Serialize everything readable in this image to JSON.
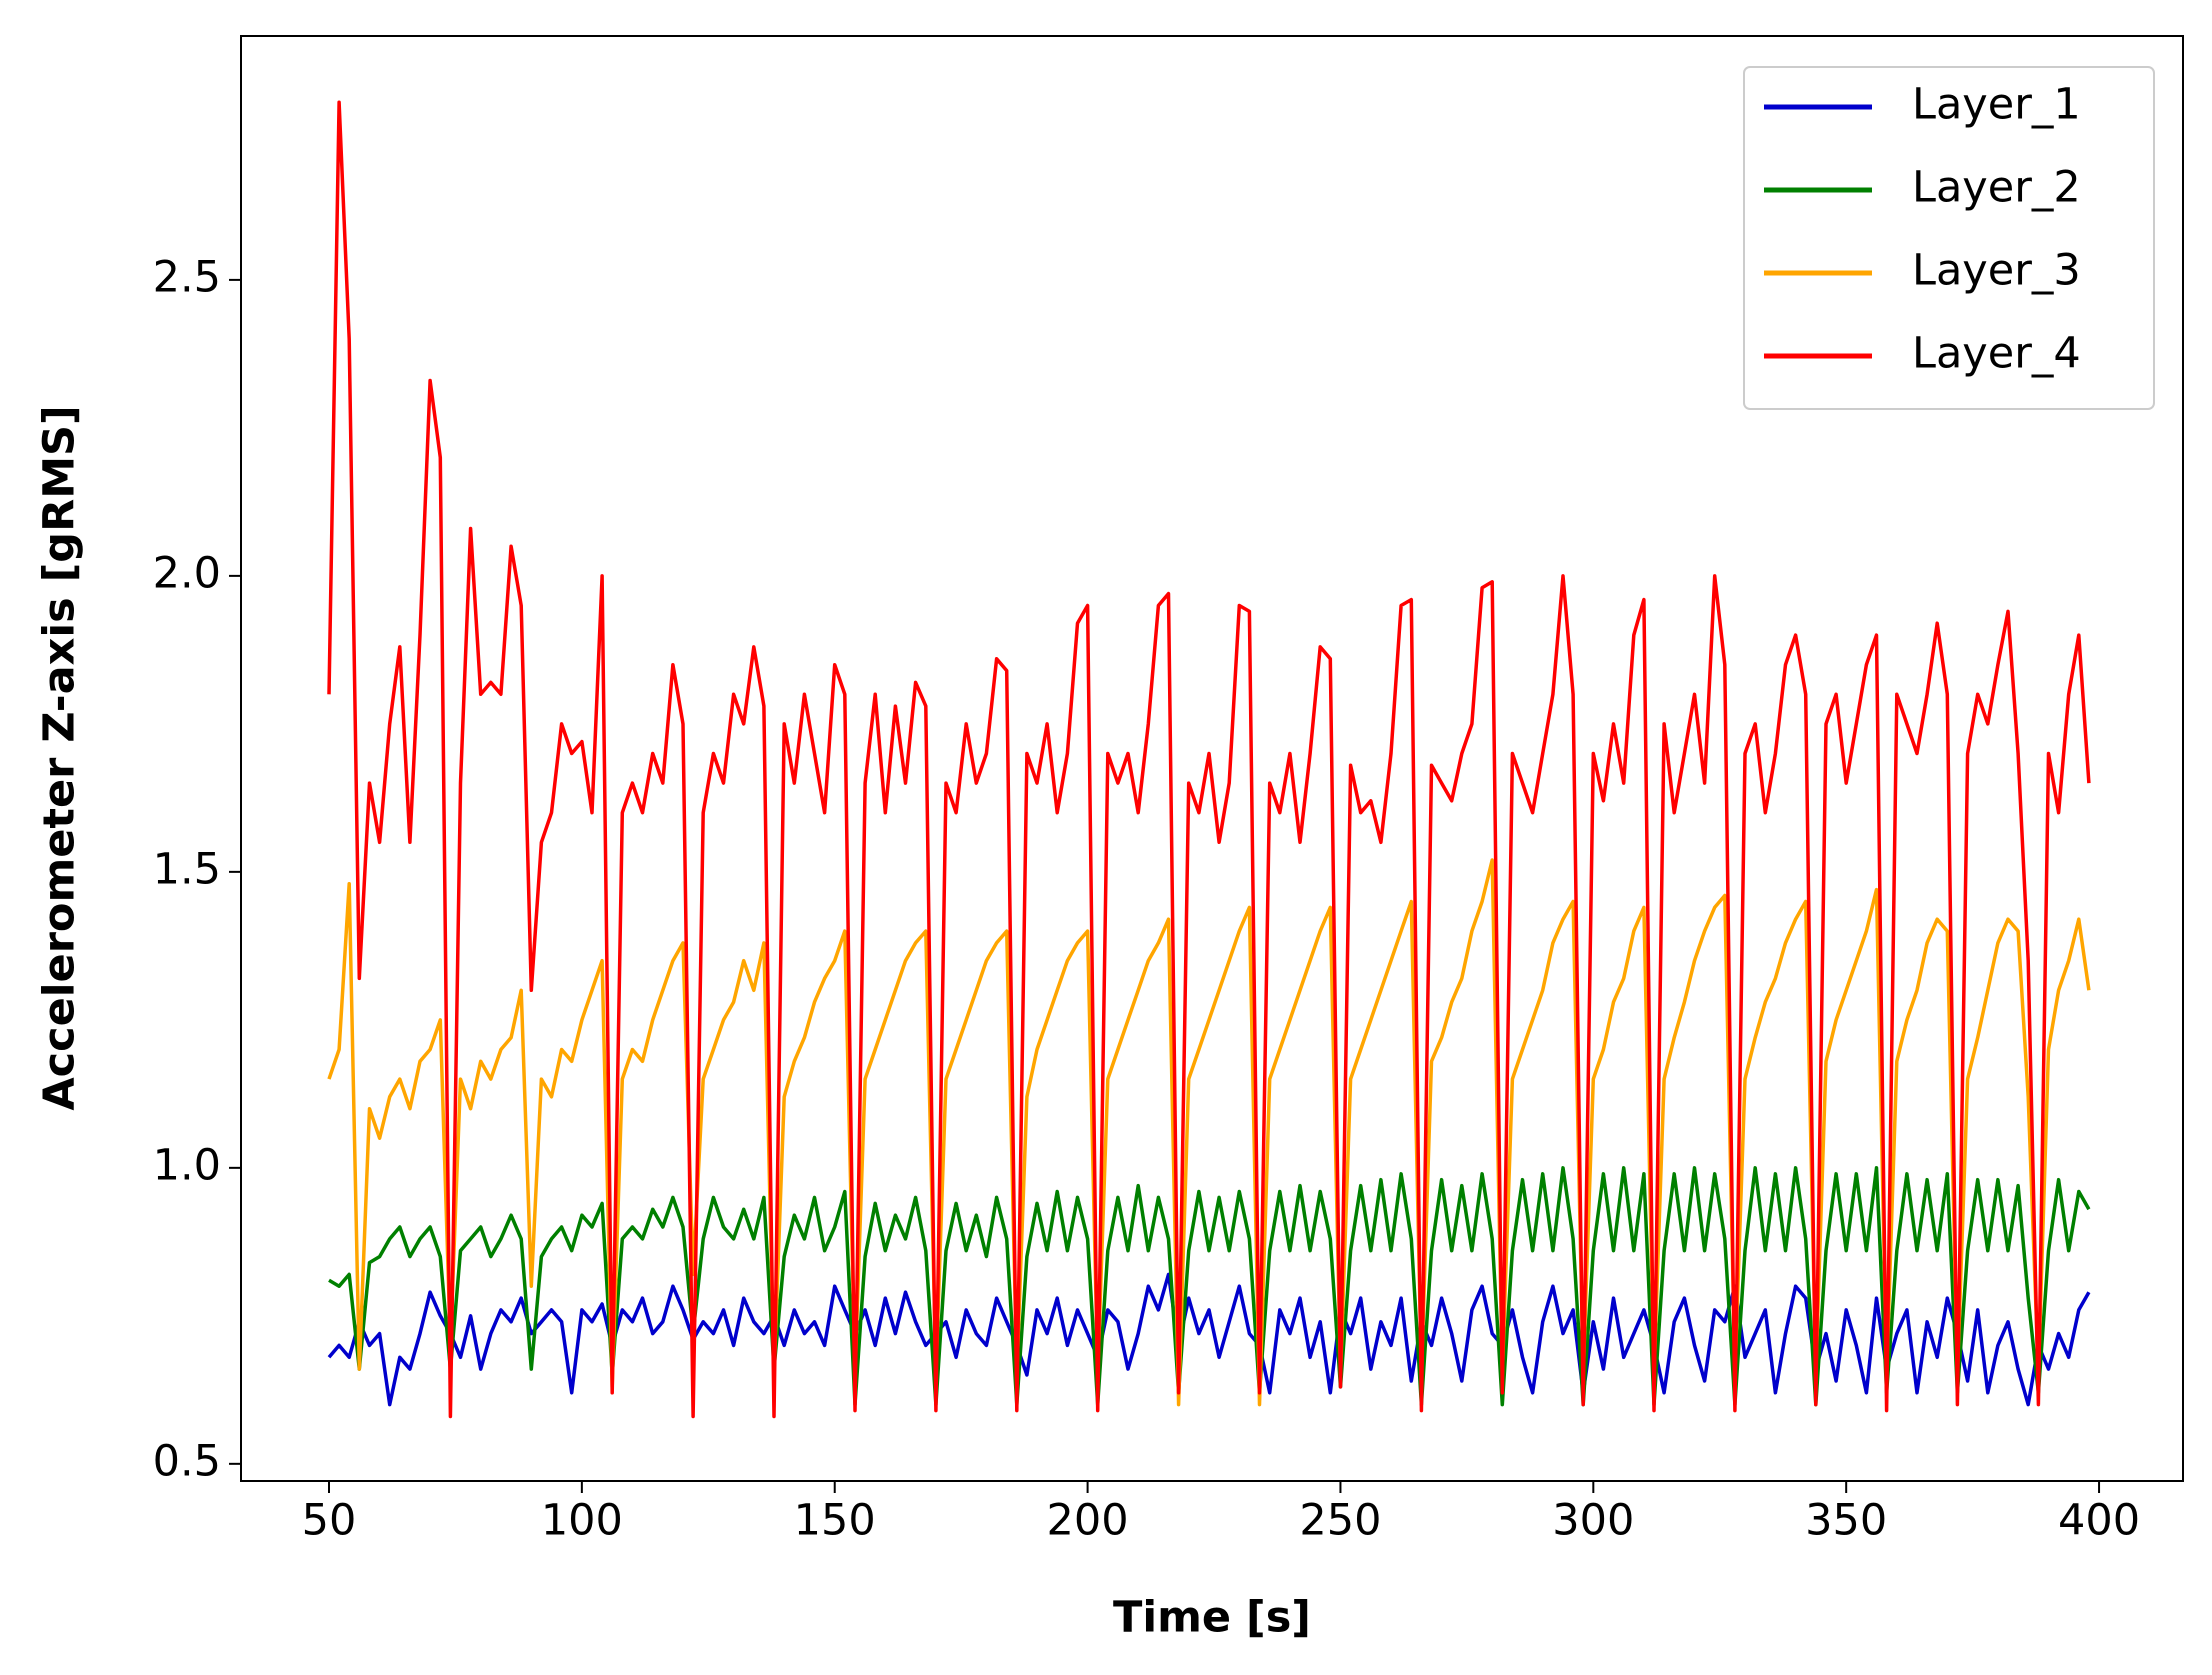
{
  "chart_data": {
    "type": "line",
    "xlabel": "Time [s]",
    "ylabel": "Accelerometer Z-axis [gRMS]",
    "xlim": [
      32.6,
      416.6
    ],
    "ylim": [
      0.471,
      2.912
    ],
    "xticks": [
      50,
      100,
      150,
      200,
      250,
      300,
      350,
      400
    ],
    "yticks": [
      0.5,
      {
        "value": 1,
        "label": "1.0"
      },
      1.5,
      {
        "value": 2,
        "label": "2.0"
      },
      2.5
    ],
    "legend": "upper right",
    "grid": false,
    "x": [
      50,
      52,
      54,
      56,
      58,
      60,
      62,
      64,
      66,
      68,
      70,
      72,
      74,
      76,
      78,
      80,
      82,
      84,
      86,
      88,
      90,
      92,
      94,
      96,
      98,
      100,
      102,
      104,
      106,
      108,
      110,
      112,
      114,
      116,
      118,
      120,
      122,
      124,
      126,
      128,
      130,
      132,
      134,
      136,
      138,
      140,
      142,
      144,
      146,
      148,
      150,
      152,
      154,
      156,
      158,
      160,
      162,
      164,
      166,
      168,
      170,
      172,
      174,
      176,
      178,
      180,
      182,
      184,
      186,
      188,
      190,
      192,
      194,
      196,
      198,
      200,
      202,
      204,
      206,
      208,
      210,
      212,
      214,
      216,
      218,
      220,
      222,
      224,
      226,
      228,
      230,
      232,
      234,
      236,
      238,
      240,
      242,
      244,
      246,
      248,
      250,
      252,
      254,
      256,
      258,
      260,
      262,
      264,
      266,
      268,
      270,
      272,
      274,
      276,
      278,
      280,
      282,
      284,
      286,
      288,
      290,
      292,
      294,
      296,
      298,
      300,
      302,
      304,
      306,
      308,
      310,
      312,
      314,
      316,
      318,
      320,
      322,
      324,
      326,
      328,
      330,
      332,
      334,
      336,
      338,
      340,
      342,
      344,
      346,
      348,
      350,
      352,
      354,
      356,
      358,
      360,
      362,
      364,
      366,
      368,
      370,
      372,
      374,
      376,
      378,
      380,
      382,
      384,
      386,
      388,
      390,
      392,
      394,
      396,
      398
    ],
    "series": [
      {
        "name": "Layer_1",
        "color": "#0000cc",
        "values": [
          0.68,
          0.7,
          0.68,
          0.74,
          0.7,
          0.72,
          0.6,
          0.68,
          0.66,
          0.72,
          0.79,
          0.75,
          0.72,
          0.68,
          0.75,
          0.66,
          0.72,
          0.76,
          0.74,
          0.78,
          0.72,
          0.74,
          0.76,
          0.74,
          0.62,
          0.76,
          0.74,
          0.77,
          0.7,
          0.76,
          0.74,
          0.78,
          0.72,
          0.74,
          0.8,
          0.76,
          0.71,
          0.74,
          0.72,
          0.76,
          0.7,
          0.78,
          0.74,
          0.72,
          0.75,
          0.7,
          0.76,
          0.72,
          0.74,
          0.7,
          0.8,
          0.76,
          0.72,
          0.76,
          0.7,
          0.78,
          0.72,
          0.79,
          0.74,
          0.7,
          0.72,
          0.74,
          0.68,
          0.76,
          0.72,
          0.7,
          0.78,
          0.74,
          0.7,
          0.65,
          0.76,
          0.72,
          0.78,
          0.7,
          0.76,
          0.72,
          0.68,
          0.76,
          0.74,
          0.66,
          0.72,
          0.8,
          0.76,
          0.82,
          0.7,
          0.78,
          0.72,
          0.76,
          0.68,
          0.74,
          0.8,
          0.72,
          0.7,
          0.62,
          0.76,
          0.72,
          0.78,
          0.68,
          0.74,
          0.62,
          0.76,
          0.72,
          0.78,
          0.66,
          0.74,
          0.7,
          0.78,
          0.64,
          0.74,
          0.7,
          0.78,
          0.72,
          0.64,
          0.76,
          0.8,
          0.72,
          0.7,
          0.76,
          0.68,
          0.62,
          0.74,
          0.8,
          0.72,
          0.76,
          0.62,
          0.74,
          0.66,
          0.78,
          0.68,
          0.72,
          0.76,
          0.7,
          0.62,
          0.74,
          0.78,
          0.7,
          0.64,
          0.76,
          0.74,
          0.8,
          0.68,
          0.72,
          0.76,
          0.62,
          0.72,
          0.8,
          0.78,
          0.66,
          0.72,
          0.64,
          0.76,
          0.7,
          0.62,
          0.78,
          0.66,
          0.72,
          0.76,
          0.62,
          0.74,
          0.68,
          0.78,
          0.72,
          0.64,
          0.76,
          0.62,
          0.7,
          0.74,
          0.66,
          0.6,
          0.7,
          0.66,
          0.72,
          0.68,
          0.76,
          0.79
        ]
      },
      {
        "name": "Layer_2",
        "color": "#008000",
        "values": [
          0.81,
          0.8,
          0.82,
          0.66,
          0.84,
          0.85,
          0.88,
          0.9,
          0.85,
          0.88,
          0.9,
          0.85,
          0.66,
          0.86,
          0.88,
          0.9,
          0.85,
          0.88,
          0.92,
          0.88,
          0.66,
          0.85,
          0.88,
          0.9,
          0.86,
          0.92,
          0.9,
          0.94,
          0.65,
          0.88,
          0.9,
          0.88,
          0.93,
          0.9,
          0.95,
          0.9,
          0.72,
          0.88,
          0.95,
          0.9,
          0.88,
          0.93,
          0.88,
          0.95,
          0.66,
          0.85,
          0.92,
          0.88,
          0.95,
          0.86,
          0.9,
          0.96,
          0.6,
          0.85,
          0.94,
          0.86,
          0.92,
          0.88,
          0.95,
          0.86,
          0.6,
          0.86,
          0.94,
          0.86,
          0.92,
          0.85,
          0.95,
          0.88,
          0.6,
          0.85,
          0.94,
          0.86,
          0.96,
          0.86,
          0.95,
          0.88,
          0.6,
          0.86,
          0.95,
          0.86,
          0.97,
          0.86,
          0.95,
          0.88,
          0.62,
          0.86,
          0.96,
          0.86,
          0.95,
          0.86,
          0.96,
          0.88,
          0.62,
          0.86,
          0.96,
          0.86,
          0.97,
          0.86,
          0.96,
          0.88,
          0.63,
          0.86,
          0.97,
          0.86,
          0.98,
          0.86,
          0.99,
          0.88,
          0.6,
          0.86,
          0.98,
          0.86,
          0.97,
          0.86,
          0.99,
          0.88,
          0.6,
          0.86,
          0.98,
          0.86,
          0.99,
          0.86,
          1.0,
          0.88,
          0.6,
          0.86,
          0.99,
          0.86,
          1.0,
          0.86,
          0.99,
          0.6,
          0.86,
          0.99,
          0.86,
          1.0,
          0.86,
          0.99,
          0.88,
          0.6,
          0.86,
          1.0,
          0.86,
          0.99,
          0.86,
          1.0,
          0.88,
          0.6,
          0.86,
          0.99,
          0.86,
          0.99,
          0.86,
          1.0,
          0.62,
          0.86,
          0.99,
          0.86,
          0.98,
          0.86,
          0.99,
          0.62,
          0.86,
          0.98,
          0.86,
          0.98,
          0.86,
          0.97,
          0.78,
          0.62,
          0.86,
          0.98,
          0.86,
          0.96,
          0.93
        ]
      },
      {
        "name": "Layer_3",
        "color": "#ffa500",
        "values": [
          1.15,
          1.2,
          1.48,
          0.66,
          1.1,
          1.05,
          1.12,
          1.15,
          1.1,
          1.18,
          1.2,
          1.25,
          0.7,
          1.15,
          1.1,
          1.18,
          1.15,
          1.2,
          1.22,
          1.3,
          0.8,
          1.15,
          1.12,
          1.2,
          1.18,
          1.25,
          1.3,
          1.35,
          0.63,
          1.15,
          1.2,
          1.18,
          1.25,
          1.3,
          1.35,
          1.38,
          0.82,
          1.15,
          1.2,
          1.25,
          1.28,
          1.35,
          1.3,
          1.38,
          0.65,
          1.12,
          1.18,
          1.22,
          1.28,
          1.32,
          1.35,
          1.4,
          0.65,
          1.15,
          1.2,
          1.25,
          1.3,
          1.35,
          1.38,
          1.4,
          0.65,
          1.15,
          1.2,
          1.25,
          1.3,
          1.35,
          1.38,
          1.4,
          0.65,
          1.12,
          1.2,
          1.25,
          1.3,
          1.35,
          1.38,
          1.4,
          0.65,
          1.15,
          1.2,
          1.25,
          1.3,
          1.35,
          1.38,
          1.42,
          0.6,
          1.15,
          1.2,
          1.25,
          1.3,
          1.35,
          1.4,
          1.44,
          0.6,
          1.15,
          1.2,
          1.25,
          1.3,
          1.35,
          1.4,
          1.44,
          0.65,
          1.15,
          1.2,
          1.25,
          1.3,
          1.35,
          1.4,
          1.45,
          0.65,
          1.18,
          1.22,
          1.28,
          1.32,
          1.4,
          1.45,
          1.52,
          0.65,
          1.15,
          1.2,
          1.25,
          1.3,
          1.38,
          1.42,
          1.45,
          0.65,
          1.15,
          1.2,
          1.28,
          1.32,
          1.4,
          1.44,
          0.65,
          1.15,
          1.22,
          1.28,
          1.35,
          1.4,
          1.44,
          1.46,
          0.65,
          1.15,
          1.22,
          1.28,
          1.32,
          1.38,
          1.42,
          1.45,
          0.65,
          1.18,
          1.25,
          1.3,
          1.35,
          1.4,
          1.47,
          0.65,
          1.18,
          1.25,
          1.3,
          1.38,
          1.42,
          1.4,
          0.65,
          1.15,
          1.22,
          1.3,
          1.38,
          1.42,
          1.4,
          1.12,
          0.65,
          1.2,
          1.3,
          1.35,
          1.42,
          1.3
        ]
      },
      {
        "name": "Layer_4",
        "color": "#ff0000",
        "values": [
          1.8,
          2.8,
          2.4,
          1.32,
          1.65,
          1.55,
          1.75,
          1.88,
          1.55,
          1.9,
          2.33,
          2.2,
          0.58,
          1.65,
          2.08,
          1.8,
          1.82,
          1.8,
          2.05,
          1.95,
          1.3,
          1.55,
          1.6,
          1.75,
          1.7,
          1.72,
          1.6,
          2.0,
          0.62,
          1.6,
          1.65,
          1.6,
          1.7,
          1.65,
          1.85,
          1.75,
          0.58,
          1.6,
          1.7,
          1.65,
          1.8,
          1.75,
          1.88,
          1.78,
          0.58,
          1.75,
          1.65,
          1.8,
          1.7,
          1.6,
          1.85,
          1.8,
          0.59,
          1.65,
          1.8,
          1.6,
          1.78,
          1.65,
          1.82,
          1.78,
          0.59,
          1.65,
          1.6,
          1.75,
          1.65,
          1.7,
          1.86,
          1.84,
          0.59,
          1.7,
          1.65,
          1.75,
          1.6,
          1.7,
          1.92,
          1.95,
          0.59,
          1.7,
          1.65,
          1.7,
          1.6,
          1.75,
          1.95,
          1.97,
          0.62,
          1.65,
          1.6,
          1.7,
          1.55,
          1.65,
          1.95,
          1.94,
          0.62,
          1.65,
          1.6,
          1.7,
          1.55,
          1.7,
          1.88,
          1.86,
          0.63,
          1.68,
          1.6,
          1.62,
          1.55,
          1.7,
          1.95,
          1.96,
          0.59,
          1.68,
          1.65,
          1.62,
          1.7,
          1.75,
          1.98,
          1.99,
          0.62,
          1.7,
          1.65,
          1.6,
          1.7,
          1.8,
          2.0,
          1.8,
          0.6,
          1.7,
          1.62,
          1.75,
          1.65,
          1.9,
          1.96,
          0.59,
          1.75,
          1.6,
          1.7,
          1.8,
          1.65,
          2.0,
          1.85,
          0.59,
          1.7,
          1.75,
          1.6,
          1.7,
          1.85,
          1.9,
          1.8,
          0.6,
          1.75,
          1.8,
          1.65,
          1.75,
          1.85,
          1.9,
          0.59,
          1.8,
          1.75,
          1.7,
          1.8,
          1.92,
          1.8,
          0.6,
          1.7,
          1.8,
          1.75,
          1.85,
          1.94,
          1.7,
          1.35,
          0.6,
          1.7,
          1.6,
          1.8,
          1.9,
          1.65
        ]
      }
    ]
  }
}
